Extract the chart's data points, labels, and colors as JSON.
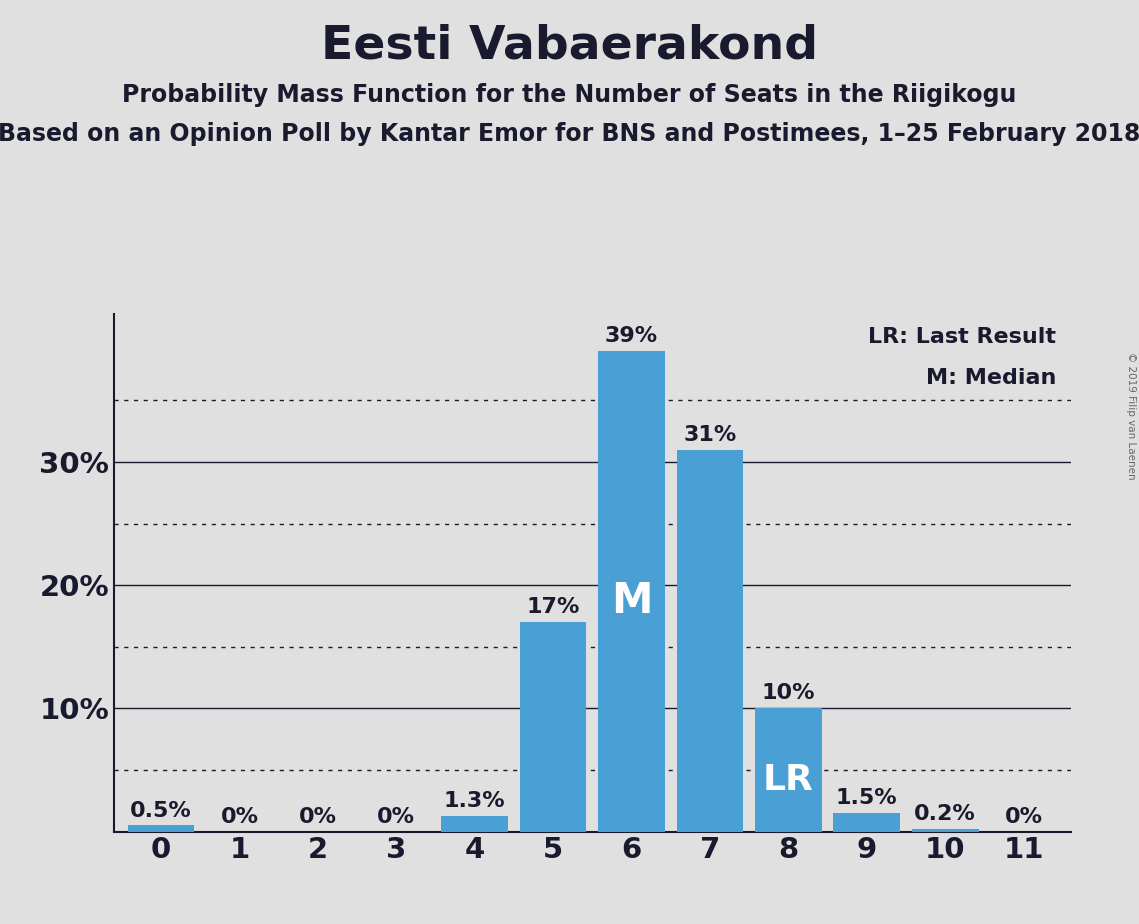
{
  "title": "Eesti Vabaerakond",
  "subtitle": "Probability Mass Function for the Number of Seats in the Riigikogu",
  "subsubtitle": "Based on an Opinion Poll by Kantar Emor for BNS and Postimees, 1–25 February 2018",
  "copyright": "© 2019 Filip van Laenen",
  "categories": [
    0,
    1,
    2,
    3,
    4,
    5,
    6,
    7,
    8,
    9,
    10,
    11
  ],
  "values": [
    0.5,
    0.0,
    0.0,
    0.0,
    1.3,
    17.0,
    39.0,
    31.0,
    10.0,
    1.5,
    0.2,
    0.0
  ],
  "bar_color": "#4a9fd4",
  "background_color": "#e0e0e0",
  "ylim": [
    0,
    42
  ],
  "yticks": [
    0,
    10,
    20,
    30
  ],
  "ytick_labels": [
    "",
    "10%",
    "20%",
    "30%"
  ],
  "dotted_lines": [
    5,
    15,
    25,
    35
  ],
  "solid_lines": [
    10,
    20,
    30
  ],
  "median_bar": 6,
  "lr_bar": 8,
  "legend_lr": "LR: Last Result",
  "legend_m": "M: Median",
  "title_fontsize": 34,
  "subtitle_fontsize": 17,
  "subsubtitle_fontsize": 17,
  "axis_label_fontsize": 21,
  "bar_label_fontsize": 16,
  "text_color": "#1a1a2e",
  "bar_label_color": "#1a1a2e"
}
